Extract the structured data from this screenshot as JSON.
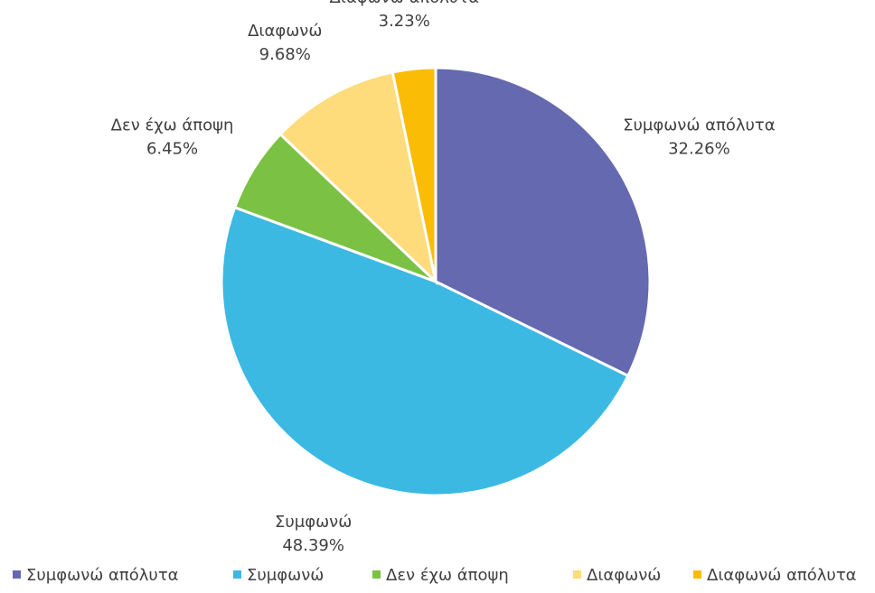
{
  "chart_data": {
    "type": "pie",
    "categories": [
      "Συμφωνώ απόλυτα",
      "Συμφωνώ",
      "Δεν έχω άποψη",
      "Διαφωνώ",
      "Διαφωνώ απόλυτα"
    ],
    "values": [
      32.26,
      48.39,
      6.45,
      9.68,
      3.23
    ],
    "value_labels": [
      "32.26%",
      "48.39%",
      "6.45%",
      "9.68%",
      "3.23%"
    ],
    "colors": [
      "#6569b0",
      "#3bb9e3",
      "#7bc143",
      "#fedb7b",
      "#fbbc05"
    ],
    "legend": "bottom"
  }
}
